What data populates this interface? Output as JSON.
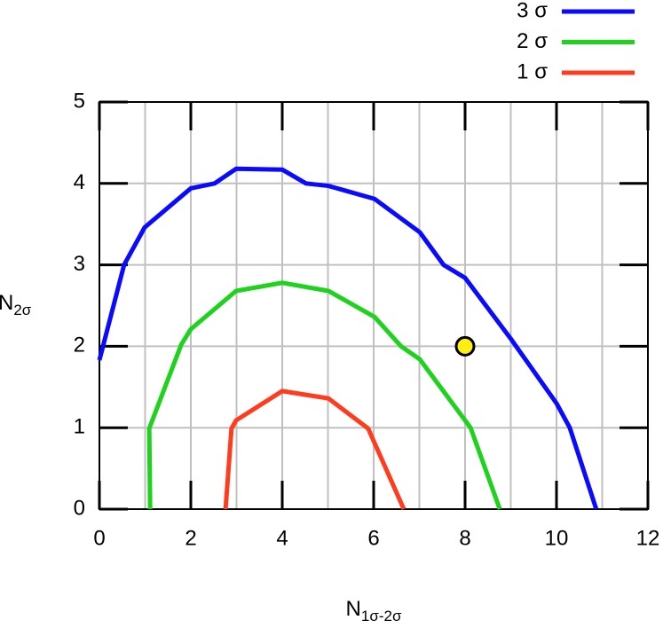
{
  "chart_data": {
    "type": "line",
    "xlabel": {
      "main": "N",
      "sub": "1σ-2σ"
    },
    "ylabel": {
      "main": "N",
      "sub": "2σ"
    },
    "xlim": [
      0,
      12
    ],
    "xticks": [
      0,
      2,
      4,
      6,
      8,
      10,
      12
    ],
    "minor_xticks": [
      1,
      3,
      5,
      7,
      9,
      11
    ],
    "ylim": [
      0,
      5
    ],
    "yticks": [
      0,
      1,
      2,
      3,
      4,
      5
    ],
    "grid": true,
    "legend": "top-right",
    "series": [
      {
        "name": "3 σ",
        "color": "#0a0aff",
        "x": [
          0,
          0.54,
          0.99,
          2.0,
          2.52,
          2.99,
          4.0,
          4.52,
          5.01,
          6.02,
          7.01,
          7.53,
          8.0,
          8.99,
          10.0,
          10.29,
          10.87
        ],
        "values": [
          1.83,
          3.0,
          3.46,
          3.94,
          4.0,
          4.18,
          4.17,
          4.0,
          3.97,
          3.81,
          3.4,
          3.0,
          2.84,
          2.1,
          1.3,
          1.0,
          0
        ]
      },
      {
        "name": "2 σ",
        "color": "#1ed21e",
        "x": [
          1.11,
          1.09,
          1.79,
          2.0,
          2.99,
          4.0,
          5.01,
          6.02,
          6.6,
          7.01,
          8.12,
          8.76
        ],
        "values": [
          0,
          0.99,
          2.02,
          2.21,
          2.68,
          2.78,
          2.68,
          2.36,
          2.0,
          1.84,
          1.0,
          0
        ]
      },
      {
        "name": "1 σ",
        "color": "#ff3c1e",
        "x": [
          2.76,
          2.89,
          2.99,
          4.0,
          5.01,
          5.88,
          6.66
        ],
        "values": [
          0,
          0.99,
          1.09,
          1.45,
          1.36,
          0.99,
          0
        ]
      }
    ],
    "point": {
      "x": 8,
      "y": 2,
      "color": "#ffee11"
    }
  }
}
